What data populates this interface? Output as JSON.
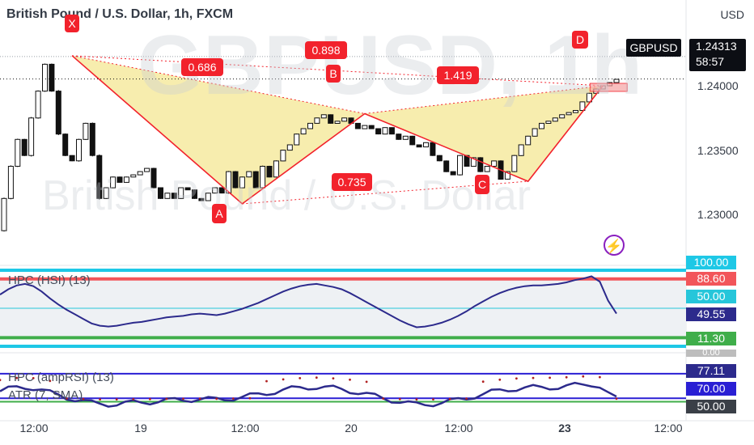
{
  "header": {
    "title": "British Pound / U.S. Dollar, 1h, FXCM"
  },
  "watermark": {
    "symbol": "GBPUSD, 1h",
    "name": "British Pound / U.S. Dollar"
  },
  "price_axis": {
    "currency": "USD",
    "ticks": [
      "1.24000",
      "1.23500",
      "1.23000"
    ]
  },
  "price_tag": {
    "symbol": "GBPUSD",
    "price": "1.24313",
    "countdown": "58:57"
  },
  "time_axis": {
    "ticks": [
      "12:00",
      "19",
      "12:00",
      "20",
      "12:00",
      "23",
      "12:00"
    ]
  },
  "pattern": {
    "points": [
      {
        "label": "X",
        "value": 1.2453
      },
      {
        "label": "A",
        "value": 1.2315
      },
      {
        "label": "B",
        "value": 1.2399
      },
      {
        "label": "C",
        "value": 1.2336
      },
      {
        "label": "D",
        "value": 1.2425
      }
    ],
    "ratios": [
      "0.686",
      "0.898",
      "1.419",
      "0.735"
    ],
    "fill_color": "#f6eaa0",
    "line_color": "#f2222c"
  },
  "indicators": {
    "hpc_hsi": {
      "title": "HPC (HSI) (13)",
      "levels": [
        "100.00",
        "88.60",
        "50.00",
        "49.55",
        "11.30",
        "0.00"
      ],
      "level_colors": [
        "#1ec8e6",
        "#f2555a",
        "#26c6da",
        "#2c2a8c",
        "#3fae4a",
        "#bdbdbd"
      ]
    },
    "hpc_amprsi": {
      "title": "HPC (ampRSI) (13)",
      "levels": [
        "77.11",
        "70.00",
        "50.00"
      ],
      "level_colors": [
        "#2c2a8c",
        "#2a1fd4",
        "#3a3f47"
      ]
    },
    "atr": {
      "title": "ATR (7, SMA)"
    }
  },
  "colors": {
    "up_candle": "#ffffff",
    "down_candle": "#111111",
    "oscillator": "#2c2a8c",
    "accent": "#f2222c",
    "bolt": "#8a1fbf"
  },
  "icons": {
    "flash": "lightning-bolt-icon"
  },
  "chart_data": {
    "type": "candlestick",
    "title": "British Pound / U.S. Dollar, 1h, FXCM",
    "ylim": [
      1.2275,
      1.248
    ],
    "yticks": [
      1.24,
      1.235,
      1.23
    ],
    "xticks": [
      "12:00",
      "19",
      "12:00",
      "20",
      "12:00",
      "23",
      "12:00"
    ],
    "candles": [
      [
        1.229,
        1.232
      ],
      [
        1.232,
        1.235
      ],
      [
        1.235,
        1.2375
      ],
      [
        1.2375,
        1.236
      ],
      [
        1.236,
        1.2395
      ],
      [
        1.2395,
        1.242
      ],
      [
        1.242,
        1.2445
      ],
      [
        1.2445,
        1.242
      ],
      [
        1.242,
        1.238
      ],
      [
        1.238,
        1.236
      ],
      [
        1.236,
        1.2355
      ],
      [
        1.2355,
        1.2375
      ],
      [
        1.2375,
        1.239
      ],
      [
        1.239,
        1.236
      ],
      [
        1.236,
        1.232
      ],
      [
        1.232,
        1.233
      ],
      [
        1.233,
        1.234
      ],
      [
        1.234,
        1.2335
      ],
      [
        1.2335,
        1.234
      ],
      [
        1.234,
        1.2342
      ],
      [
        1.2342,
        1.2345
      ],
      [
        1.2345,
        1.2348
      ],
      [
        1.2348,
        1.233
      ],
      [
        1.233,
        1.232
      ],
      [
        1.232,
        1.2325
      ],
      [
        1.2325,
        1.232
      ],
      [
        1.232,
        1.233
      ],
      [
        1.233,
        1.2328
      ],
      [
        1.2328,
        1.232
      ],
      [
        1.232,
        1.2318
      ],
      [
        1.2318,
        1.2325
      ],
      [
        1.2325,
        1.233
      ],
      [
        1.233,
        1.2325
      ],
      [
        1.2325,
        1.2345
      ],
      [
        1.2345,
        1.233
      ],
      [
        1.233,
        1.234
      ],
      [
        1.234,
        1.2345
      ],
      [
        1.2345,
        1.233
      ],
      [
        1.233,
        1.235
      ],
      [
        1.235,
        1.234
      ],
      [
        1.234,
        1.2355
      ],
      [
        1.2355,
        1.2365
      ],
      [
        1.2365,
        1.237
      ],
      [
        1.237,
        1.238
      ],
      [
        1.238,
        1.2385
      ],
      [
        1.2385,
        1.239
      ],
      [
        1.239,
        1.2395
      ],
      [
        1.2395,
        1.2398
      ],
      [
        1.2398,
        1.239
      ],
      [
        1.239,
        1.2392
      ],
      [
        1.2392,
        1.2395
      ],
      [
        1.2395,
        1.239
      ],
      [
        1.239,
        1.2385
      ],
      [
        1.2385,
        1.2388
      ],
      [
        1.2388,
        1.2385
      ],
      [
        1.2385,
        1.238
      ],
      [
        1.238,
        1.2386
      ],
      [
        1.2386,
        1.238
      ],
      [
        1.238,
        1.2375
      ],
      [
        1.2375,
        1.2378
      ],
      [
        1.2378,
        1.237
      ],
      [
        1.237,
        1.2368
      ],
      [
        1.2368,
        1.2372
      ],
      [
        1.2372,
        1.236
      ],
      [
        1.236,
        1.2355
      ],
      [
        1.2355,
        1.2345
      ],
      [
        1.2345,
        1.2342
      ],
      [
        1.2342,
        1.236
      ],
      [
        1.236,
        1.235
      ],
      [
        1.235,
        1.2358
      ],
      [
        1.2358,
        1.2345
      ],
      [
        1.2345,
        1.235
      ],
      [
        1.235,
        1.2355
      ],
      [
        1.2355,
        1.2338
      ],
      [
        1.2338,
        1.2345
      ],
      [
        1.2345,
        1.236
      ],
      [
        1.236,
        1.237
      ],
      [
        1.237,
        1.2378
      ],
      [
        1.2378,
        1.2385
      ],
      [
        1.2385,
        1.239
      ],
      [
        1.239,
        1.2392
      ],
      [
        1.2392,
        1.2395
      ],
      [
        1.2395,
        1.2398
      ],
      [
        1.2398,
        1.24
      ],
      [
        1.24,
        1.2402
      ],
      [
        1.2402,
        1.241
      ],
      [
        1.241,
        1.2418
      ],
      [
        1.2418,
        1.2422
      ],
      [
        1.2422,
        1.2425
      ],
      [
        1.2425,
        1.2428
      ],
      [
        1.2428,
        1.2431
      ]
    ],
    "pattern_points": {
      "X": 1.2453,
      "A": 1.2315,
      "B": 1.2399,
      "C": 1.2336,
      "D": 1.2425
    },
    "last_price": 1.24313,
    "hsi_series": [
      68,
      75,
      80,
      82,
      79,
      72,
      63,
      55,
      48,
      42,
      36,
      30,
      27,
      26,
      27,
      29,
      31,
      32,
      34,
      36,
      38,
      39,
      40,
      42,
      43,
      42,
      41,
      43,
      46,
      49,
      53,
      57,
      62,
      67,
      72,
      76,
      79,
      81,
      82,
      80,
      78,
      75,
      70,
      64,
      58,
      52,
      46,
      40,
      34,
      29,
      25,
      26,
      28,
      31,
      35,
      40,
      46,
      53,
      59,
      65,
      70,
      74,
      77,
      79,
      80,
      80,
      81,
      82,
      84,
      87,
      89,
      92,
      85,
      60,
      43
    ]
  }
}
